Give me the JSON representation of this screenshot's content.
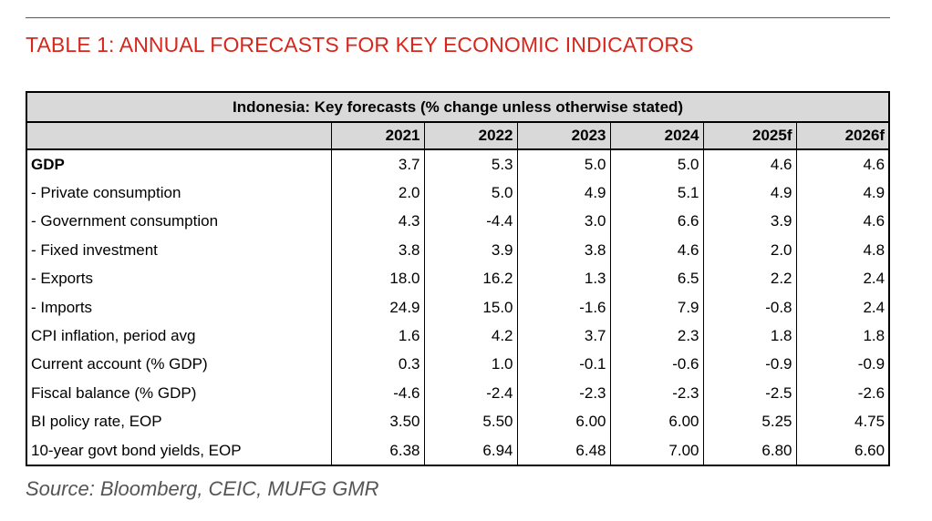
{
  "document": {
    "title": "TABLE 1: ANNUAL FORECASTS FOR KEY ECONOMIC INDICATORS",
    "source": "Source: Bloomberg, CEIC, MUFG GMR"
  },
  "table": {
    "caption": "Indonesia: Key forecasts (% change unless otherwise stated)",
    "columns": [
      "2021",
      "2022",
      "2023",
      "2024",
      "2025f",
      "2026f"
    ],
    "rows": [
      {
        "label": "GDP",
        "bold": true,
        "values": [
          "3.7",
          "5.3",
          "5.0",
          "5.0",
          "4.6",
          "4.6"
        ]
      },
      {
        "label": " - Private consumption",
        "values": [
          "2.0",
          "5.0",
          "4.9",
          "5.1",
          "4.9",
          "4.9"
        ]
      },
      {
        "label": " - Government consumption",
        "values": [
          "4.3",
          "-4.4",
          "3.0",
          "6.6",
          "3.9",
          "4.6"
        ]
      },
      {
        "label": " - Fixed investment",
        "values": [
          "3.8",
          "3.9",
          "3.8",
          "4.6",
          "2.0",
          "4.8"
        ]
      },
      {
        "label": " - Exports",
        "values": [
          "18.0",
          "16.2",
          "1.3",
          "6.5",
          "2.2",
          "2.4"
        ]
      },
      {
        "label": " - Imports",
        "values": [
          "24.9",
          "15.0",
          "-1.6",
          "7.9",
          "-0.8",
          "2.4"
        ]
      },
      {
        "label": "CPI inflation, period avg",
        "values": [
          "1.6",
          "4.2",
          "3.7",
          "2.3",
          "1.8",
          "1.8"
        ]
      },
      {
        "label": "Current account (% GDP)",
        "values": [
          "0.3",
          "1.0",
          "-0.1",
          "-0.6",
          "-0.9",
          "-0.9"
        ]
      },
      {
        "label": "Fiscal balance (% GDP)",
        "values": [
          "-4.6",
          "-2.4",
          "-2.3",
          "-2.3",
          "-2.5",
          "-2.6"
        ]
      },
      {
        "label": "BI policy rate, EOP",
        "values": [
          "3.50",
          "5.50",
          "6.00",
          "6.00",
          "5.25",
          "4.75"
        ]
      },
      {
        "label": "10-year govt bond yields, EOP",
        "values": [
          "6.38",
          "6.94",
          "6.48",
          "7.00",
          "6.80",
          "6.60"
        ]
      }
    ]
  },
  "colors": {
    "accent": "#d9261c",
    "header_fill": "#d9d9d9",
    "source_text": "#555555"
  }
}
